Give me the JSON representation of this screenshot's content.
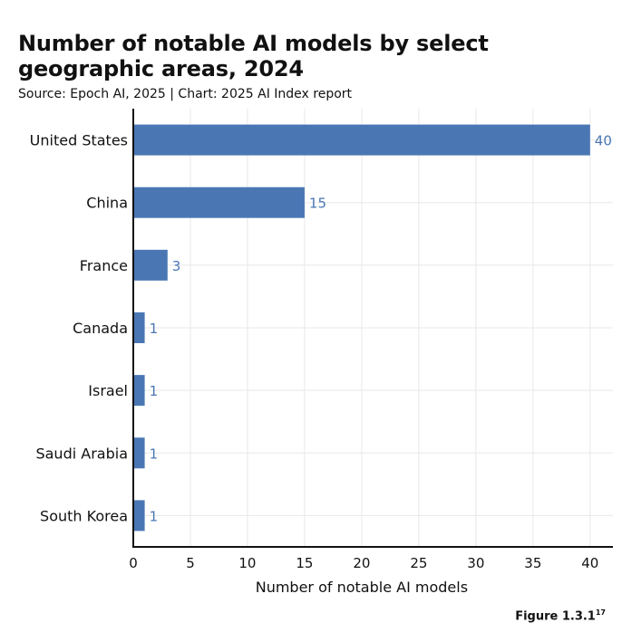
{
  "header": {
    "title": "Number of notable AI models by select geographic areas, 2024",
    "subtitle": "Source: Epoch AI, 2025 | Chart: 2025 AI Index report"
  },
  "footer": {
    "figure_label": "Figure 1.3.1",
    "figure_footnote": "17"
  },
  "colors": {
    "bar": "#4a77b4",
    "value_label": "#4a77b4",
    "axis": "#111111",
    "grid": "#e8e8e8"
  },
  "chart_data": {
    "type": "bar",
    "orientation": "horizontal",
    "title": "Number of notable AI models by select geographic areas, 2024",
    "subtitle": "Source: Epoch AI, 2025 | Chart: 2025 AI Index report",
    "categories": [
      "United States",
      "China",
      "France",
      "Canada",
      "Israel",
      "Saudi Arabia",
      "South Korea"
    ],
    "values": [
      40,
      15,
      3,
      1,
      1,
      1,
      1
    ],
    "xlabel": "Number of notable AI models",
    "ylabel": "",
    "xlim": [
      0,
      42
    ],
    "xticks": [
      0,
      5,
      10,
      15,
      20,
      25,
      30,
      35,
      40
    ],
    "grid": true,
    "legend": "none"
  }
}
